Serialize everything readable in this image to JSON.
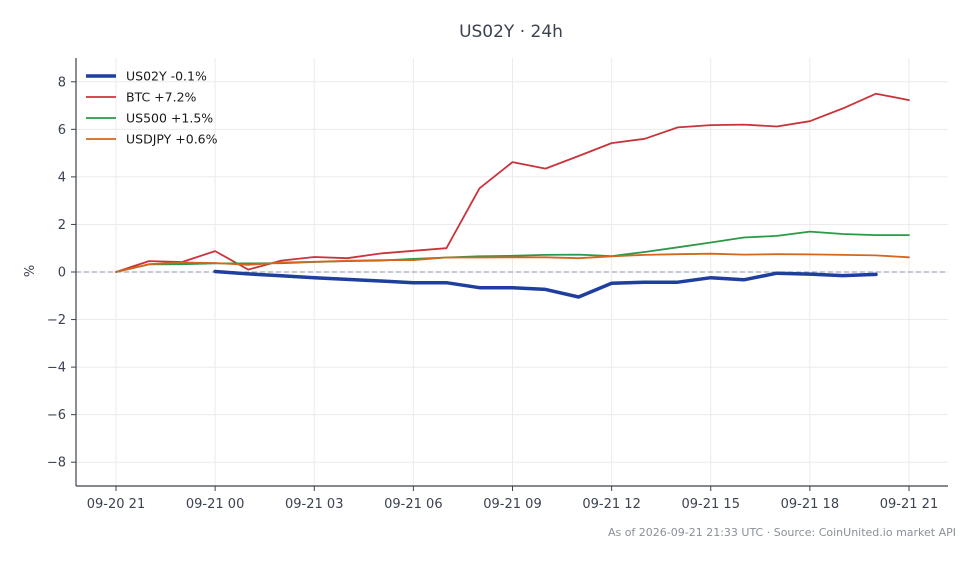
{
  "chart_data": {
    "type": "line",
    "title": "US02Y · 24h",
    "xlabel": "",
    "ylabel": "%",
    "ylim": [
      -9,
      9
    ],
    "yticks": [
      -8,
      -6,
      -4,
      -2,
      0,
      2,
      4,
      6,
      8
    ],
    "ytick_labels": [
      "−8",
      "−6",
      "−4",
      "−2",
      "0",
      "2",
      "4",
      "6",
      "8"
    ],
    "x": [
      "09-20 21",
      "09-20 22",
      "09-20 23",
      "09-21 00",
      "09-21 01",
      "09-21 02",
      "09-21 03",
      "09-21 04",
      "09-21 05",
      "09-21 06",
      "09-21 07",
      "09-21 08",
      "09-21 09",
      "09-21 10",
      "09-21 11",
      "09-21 12",
      "09-21 13",
      "09-21 14",
      "09-21 15",
      "09-21 16",
      "09-21 17",
      "09-21 18",
      "09-21 19",
      "09-21 20",
      "09-21 21"
    ],
    "xticks": [
      "09-20 21",
      "09-21 00",
      "09-21 03",
      "09-21 06",
      "09-21 09",
      "09-21 12",
      "09-21 15",
      "09-21 18",
      "09-21 21"
    ],
    "grid": true,
    "zero_line": true,
    "legend_position": "top-left",
    "series": [
      {
        "name": "US02Y -0.1%",
        "color": "#1f3f9e",
        "bold": true,
        "values": [
          null,
          null,
          null,
          0.02,
          -0.08,
          -0.16,
          -0.24,
          -0.31,
          -0.38,
          -0.45,
          -0.45,
          -0.66,
          -0.66,
          -0.73,
          -1.05,
          -0.47,
          -0.43,
          -0.43,
          -0.24,
          -0.33,
          -0.05,
          -0.09,
          -0.15,
          -0.1,
          null
        ]
      },
      {
        "name": "BTC +7.2%",
        "color": "#c9343b",
        "values": [
          0.0,
          0.46,
          0.42,
          0.88,
          0.1,
          0.48,
          0.63,
          0.58,
          0.78,
          0.89,
          1.0,
          3.52,
          4.62,
          4.35,
          4.88,
          5.42,
          5.6,
          6.08,
          6.18,
          6.2,
          6.12,
          6.34,
          6.88,
          7.5,
          7.23
        ]
      },
      {
        "name": "US500 +1.5%",
        "color": "#2a9a46",
        "values": [
          0.0,
          0.32,
          0.33,
          0.36,
          0.36,
          0.37,
          0.42,
          0.46,
          0.48,
          0.55,
          0.61,
          0.66,
          0.68,
          0.72,
          0.73,
          0.67,
          0.84,
          1.04,
          1.24,
          1.45,
          1.52,
          1.7,
          1.6,
          1.55,
          1.55
        ]
      },
      {
        "name": "USDJPY +0.6%",
        "color": "#d2671d",
        "values": [
          0.0,
          0.33,
          0.4,
          0.38,
          0.3,
          0.4,
          0.43,
          0.47,
          0.5,
          0.5,
          0.61,
          0.61,
          0.62,
          0.62,
          0.58,
          0.66,
          0.72,
          0.75,
          0.77,
          0.73,
          0.75,
          0.74,
          0.72,
          0.7,
          0.62
        ]
      }
    ]
  },
  "footer": "As of 2026-09-21 21:33 UTC · Source: CoinUnited.io market API"
}
